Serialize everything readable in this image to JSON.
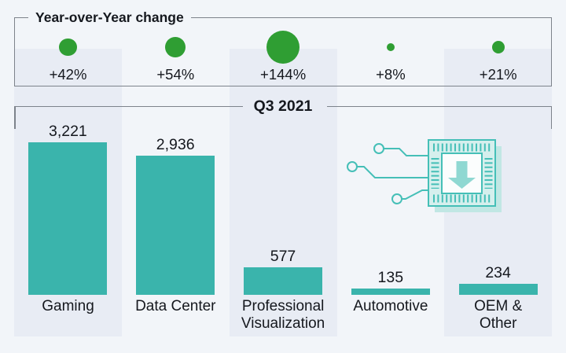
{
  "yoy_panel": {
    "title": "Year-over-Year change"
  },
  "quarter_panel": {
    "title": "Q3 2021"
  },
  "chart_data": {
    "type": "bar",
    "title": "Q3 2021",
    "subtitle": "Year-over-Year change",
    "categories": [
      "Gaming",
      "Data Center",
      "Professional Visualization",
      "Automotive",
      "OEM & Other"
    ],
    "category_display": [
      "Gaming",
      "Data Center",
      "Professional\nVisualization",
      "Automotive",
      "OEM &\nOther"
    ],
    "series": [
      {
        "name": "Q3 2021",
        "values": [
          3221,
          2936,
          577,
          135,
          234
        ],
        "labels": [
          "3,221",
          "2,936",
          "577",
          "135",
          "234"
        ]
      },
      {
        "name": "Year-over-Year change",
        "values": [
          42,
          54,
          144,
          8,
          21
        ],
        "labels": [
          "+42%",
          "+54%",
          "+144%",
          "+8%",
          "+21%"
        ]
      }
    ],
    "ylim": [
      0,
      3221
    ],
    "grid": false,
    "legend_position": "none",
    "notes": "YoY change shown as green bubbles sized by percentage; bars show Q3 2021 values"
  },
  "icons": {
    "chip": "microchip-down-arrow-icon"
  },
  "colors": {
    "background": "#f2f5f9",
    "stripe": "#e8ecf4",
    "border": "#7d838b",
    "text": "#15181e",
    "bar": "#3ab4ac",
    "dot": "#2f9e33",
    "chip_line": "#45bfb7",
    "chip_fill": "#d5efed",
    "chip_shadow": "#c1e7e4",
    "chip_arrow": "#8fd8d2"
  }
}
